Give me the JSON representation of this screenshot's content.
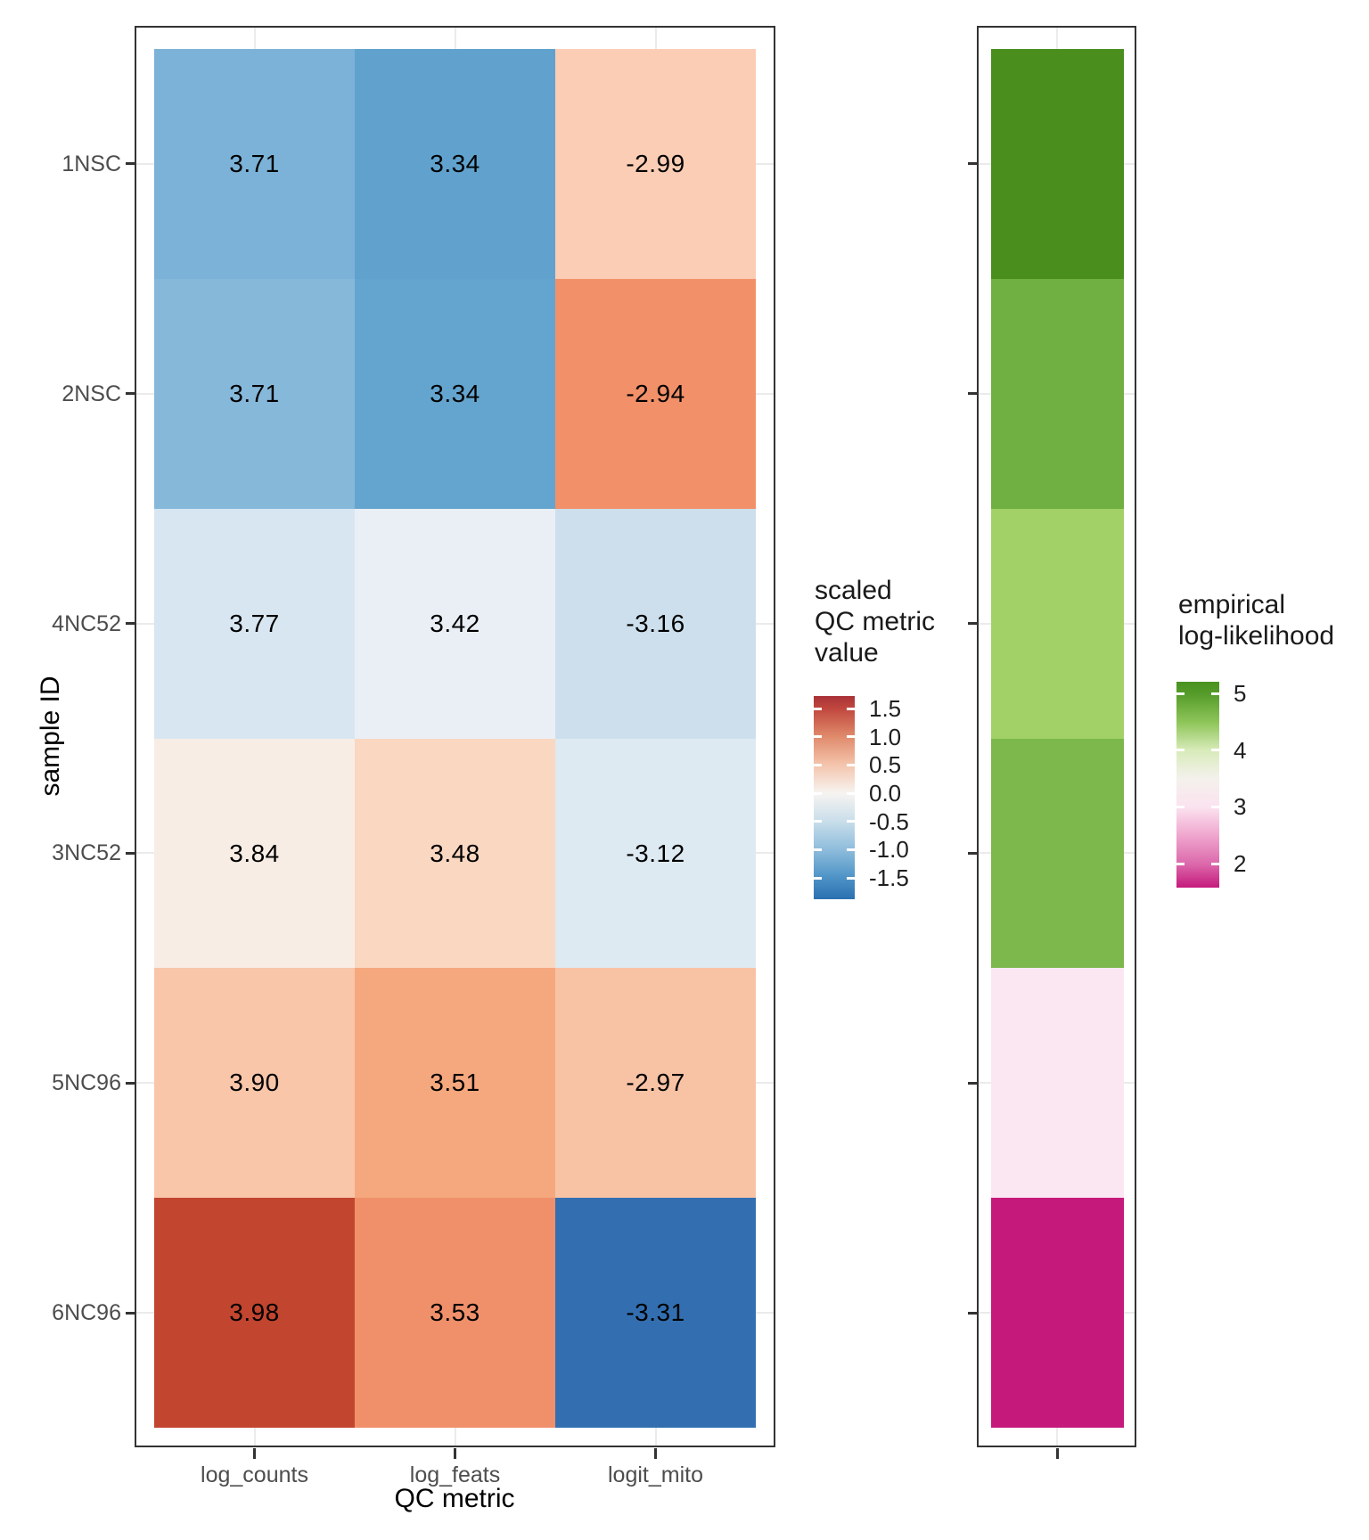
{
  "chart_data": [
    {
      "type": "heatmap",
      "title": "",
      "xlabel": "QC metric",
      "ylabel": "sample ID",
      "x_categories": [
        "log_counts",
        "log_feats",
        "logit_mito"
      ],
      "y_categories": [
        "1NSC",
        "2NSC",
        "4NC52",
        "3NC52",
        "5NC96",
        "6NC96"
      ],
      "values": [
        [
          3.71,
          3.34,
          -2.99
        ],
        [
          3.71,
          3.34,
          -2.94
        ],
        [
          3.77,
          3.42,
          -3.16
        ],
        [
          3.84,
          3.48,
          -3.12
        ],
        [
          3.9,
          3.51,
          -2.97
        ],
        [
          3.98,
          3.53,
          -3.31
        ]
      ],
      "value_labels": [
        [
          "3.71",
          "3.34",
          "-2.99"
        ],
        [
          "3.71",
          "3.34",
          "-2.94"
        ],
        [
          "3.77",
          "3.42",
          "-3.16"
        ],
        [
          "3.84",
          "3.48",
          "-3.12"
        ],
        [
          "3.90",
          "3.51",
          "-2.97"
        ],
        [
          "3.98",
          "3.53",
          "-3.31"
        ]
      ],
      "cell_colors": [
        [
          "#7CB2D7",
          "#60A2CD",
          "#FACDB4"
        ],
        [
          "#86B8DA",
          "#64A5CF",
          "#F29069"
        ],
        [
          "#D8E6F1",
          "#E9EFF5",
          "#CDDFEC"
        ],
        [
          "#F8EDE5",
          "#FAD7C1",
          "#DEEAF2"
        ],
        [
          "#F9C6A9",
          "#F5A87E",
          "#F8C3A5"
        ],
        [
          "#C2452F",
          "#F0906B",
          "#336FB0"
        ]
      ],
      "grid": true,
      "legend": {
        "position": "right",
        "title_lines": [
          "scaled",
          "QC metric",
          "value"
        ],
        "tick_labels": [
          "1.5",
          "1.0",
          "0.5",
          "0.0",
          "-0.5",
          "-1.0",
          "-1.5"
        ],
        "palette": "red-white-blue",
        "gradient_stops": [
          [
            "#A93238",
            0
          ],
          [
            "#C0473E",
            6.1
          ],
          [
            "#E08A6B",
            19.9
          ],
          [
            "#F4C4AC",
            33.8
          ],
          [
            "#F7F4F1",
            47.8
          ],
          [
            "#C9DEEA",
            61.6
          ],
          [
            "#8FBDDC",
            75.4
          ],
          [
            "#4E93C6",
            89.3
          ],
          [
            "#2B70B1",
            100
          ]
        ]
      }
    },
    {
      "type": "heatmap",
      "title": "",
      "xlabel": "",
      "ylabel": "",
      "x_categories": [
        ""
      ],
      "y_categories": [
        "1NSC",
        "2NSC",
        "4NC52",
        "3NC52",
        "5NC96",
        "6NC96"
      ],
      "cell_colors": [
        [
          "#4A8E1E"
        ],
        [
          "#70AF41"
        ],
        [
          "#A2D168"
        ],
        [
          "#7CB84B"
        ],
        [
          "#FBE7F2"
        ],
        [
          "#C51A7C"
        ]
      ],
      "grid": true,
      "legend": {
        "position": "right",
        "title_lines": [
          "empirical",
          "log-likelihood"
        ],
        "tick_labels": [
          "5",
          "4",
          "3",
          "2"
        ],
        "palette": "green-white-pink",
        "gradient_stops": [
          [
            "#4A9320",
            0
          ],
          [
            "#549B29",
            5.6
          ],
          [
            "#90C65B",
            20
          ],
          [
            "#D8EBBA",
            33.3
          ],
          [
            "#F4F1EC",
            47
          ],
          [
            "#FBE3EF",
            60.8
          ],
          [
            "#F0A9D0",
            74
          ],
          [
            "#DC6AAC",
            88.3
          ],
          [
            "#C51A7C",
            100
          ]
        ]
      }
    }
  ],
  "colors": {
    "background": "#FFFFFF",
    "panel_border": "#333333",
    "gridline": "#EBEBEB",
    "tick": "#333333",
    "axis_text": "#4D4D4D",
    "title_text": "#000000",
    "value_text": "#000000"
  }
}
